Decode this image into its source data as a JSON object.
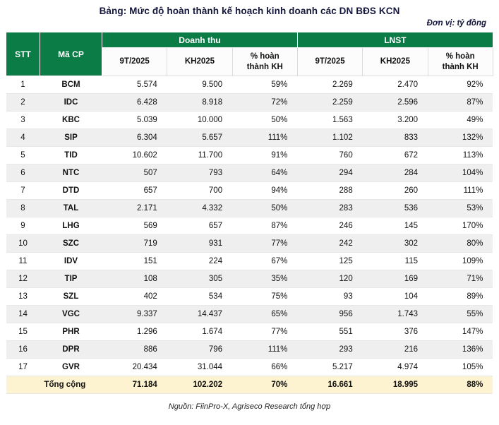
{
  "title": "Bảng: Mức độ hoàn thành kế hoạch kinh doanh các DN BĐS KCN",
  "unit_note": "Đơn vị: tỷ đồng",
  "source": "Nguồn: FiinPro-X, Agriseco Research tổng hợp",
  "colors": {
    "header_green": "#0b7c45",
    "row_alt_gray": "#efefef",
    "total_row_yellow": "#fdf3d0",
    "title_navy": "#15173c"
  },
  "chart_data": {
    "type": "table",
    "col_groups": [
      "Doanh thu",
      "LNST"
    ],
    "columns": [
      "STT",
      "Mã CP",
      "9T/2025",
      "KH2025",
      "% hoàn thành KH",
      "9T/2025",
      "KH2025",
      "% hoàn thành KH"
    ],
    "rows": [
      [
        "1",
        "BCM",
        "5.574",
        "9.500",
        "59%",
        "2.269",
        "2.470",
        "92%"
      ],
      [
        "2",
        "IDC",
        "6.428",
        "8.918",
        "72%",
        "2.259",
        "2.596",
        "87%"
      ],
      [
        "3",
        "KBC",
        "5.039",
        "10.000",
        "50%",
        "1.563",
        "3.200",
        "49%"
      ],
      [
        "4",
        "SIP",
        "6.304",
        "5.657",
        "111%",
        "1.102",
        "833",
        "132%"
      ],
      [
        "5",
        "TID",
        "10.602",
        "11.700",
        "91%",
        "760",
        "672",
        "113%"
      ],
      [
        "6",
        "NTC",
        "507",
        "793",
        "64%",
        "294",
        "284",
        "104%"
      ],
      [
        "7",
        "DTD",
        "657",
        "700",
        "94%",
        "288",
        "260",
        "111%"
      ],
      [
        "8",
        "TAL",
        "2.171",
        "4.332",
        "50%",
        "283",
        "536",
        "53%"
      ],
      [
        "9",
        "LHG",
        "569",
        "657",
        "87%",
        "246",
        "145",
        "170%"
      ],
      [
        "10",
        "SZC",
        "719",
        "931",
        "77%",
        "242",
        "302",
        "80%"
      ],
      [
        "11",
        "IDV",
        "151",
        "224",
        "67%",
        "125",
        "115",
        "109%"
      ],
      [
        "12",
        "TIP",
        "108",
        "305",
        "35%",
        "120",
        "169",
        "71%"
      ],
      [
        "13",
        "SZL",
        "402",
        "534",
        "75%",
        "93",
        "104",
        "89%"
      ],
      [
        "14",
        "VGC",
        "9.337",
        "14.437",
        "65%",
        "956",
        "1.743",
        "55%"
      ],
      [
        "15",
        "PHR",
        "1.296",
        "1.674",
        "77%",
        "551",
        "376",
        "147%"
      ],
      [
        "16",
        "DPR",
        "886",
        "796",
        "111%",
        "293",
        "216",
        "136%"
      ],
      [
        "17",
        "GVR",
        "20.434",
        "31.044",
        "66%",
        "5.217",
        "4.974",
        "105%"
      ]
    ],
    "total_row": [
      "",
      "Tổng cộng",
      "71.184",
      "102.202",
      "70%",
      "16.661",
      "18.995",
      "88%"
    ]
  }
}
